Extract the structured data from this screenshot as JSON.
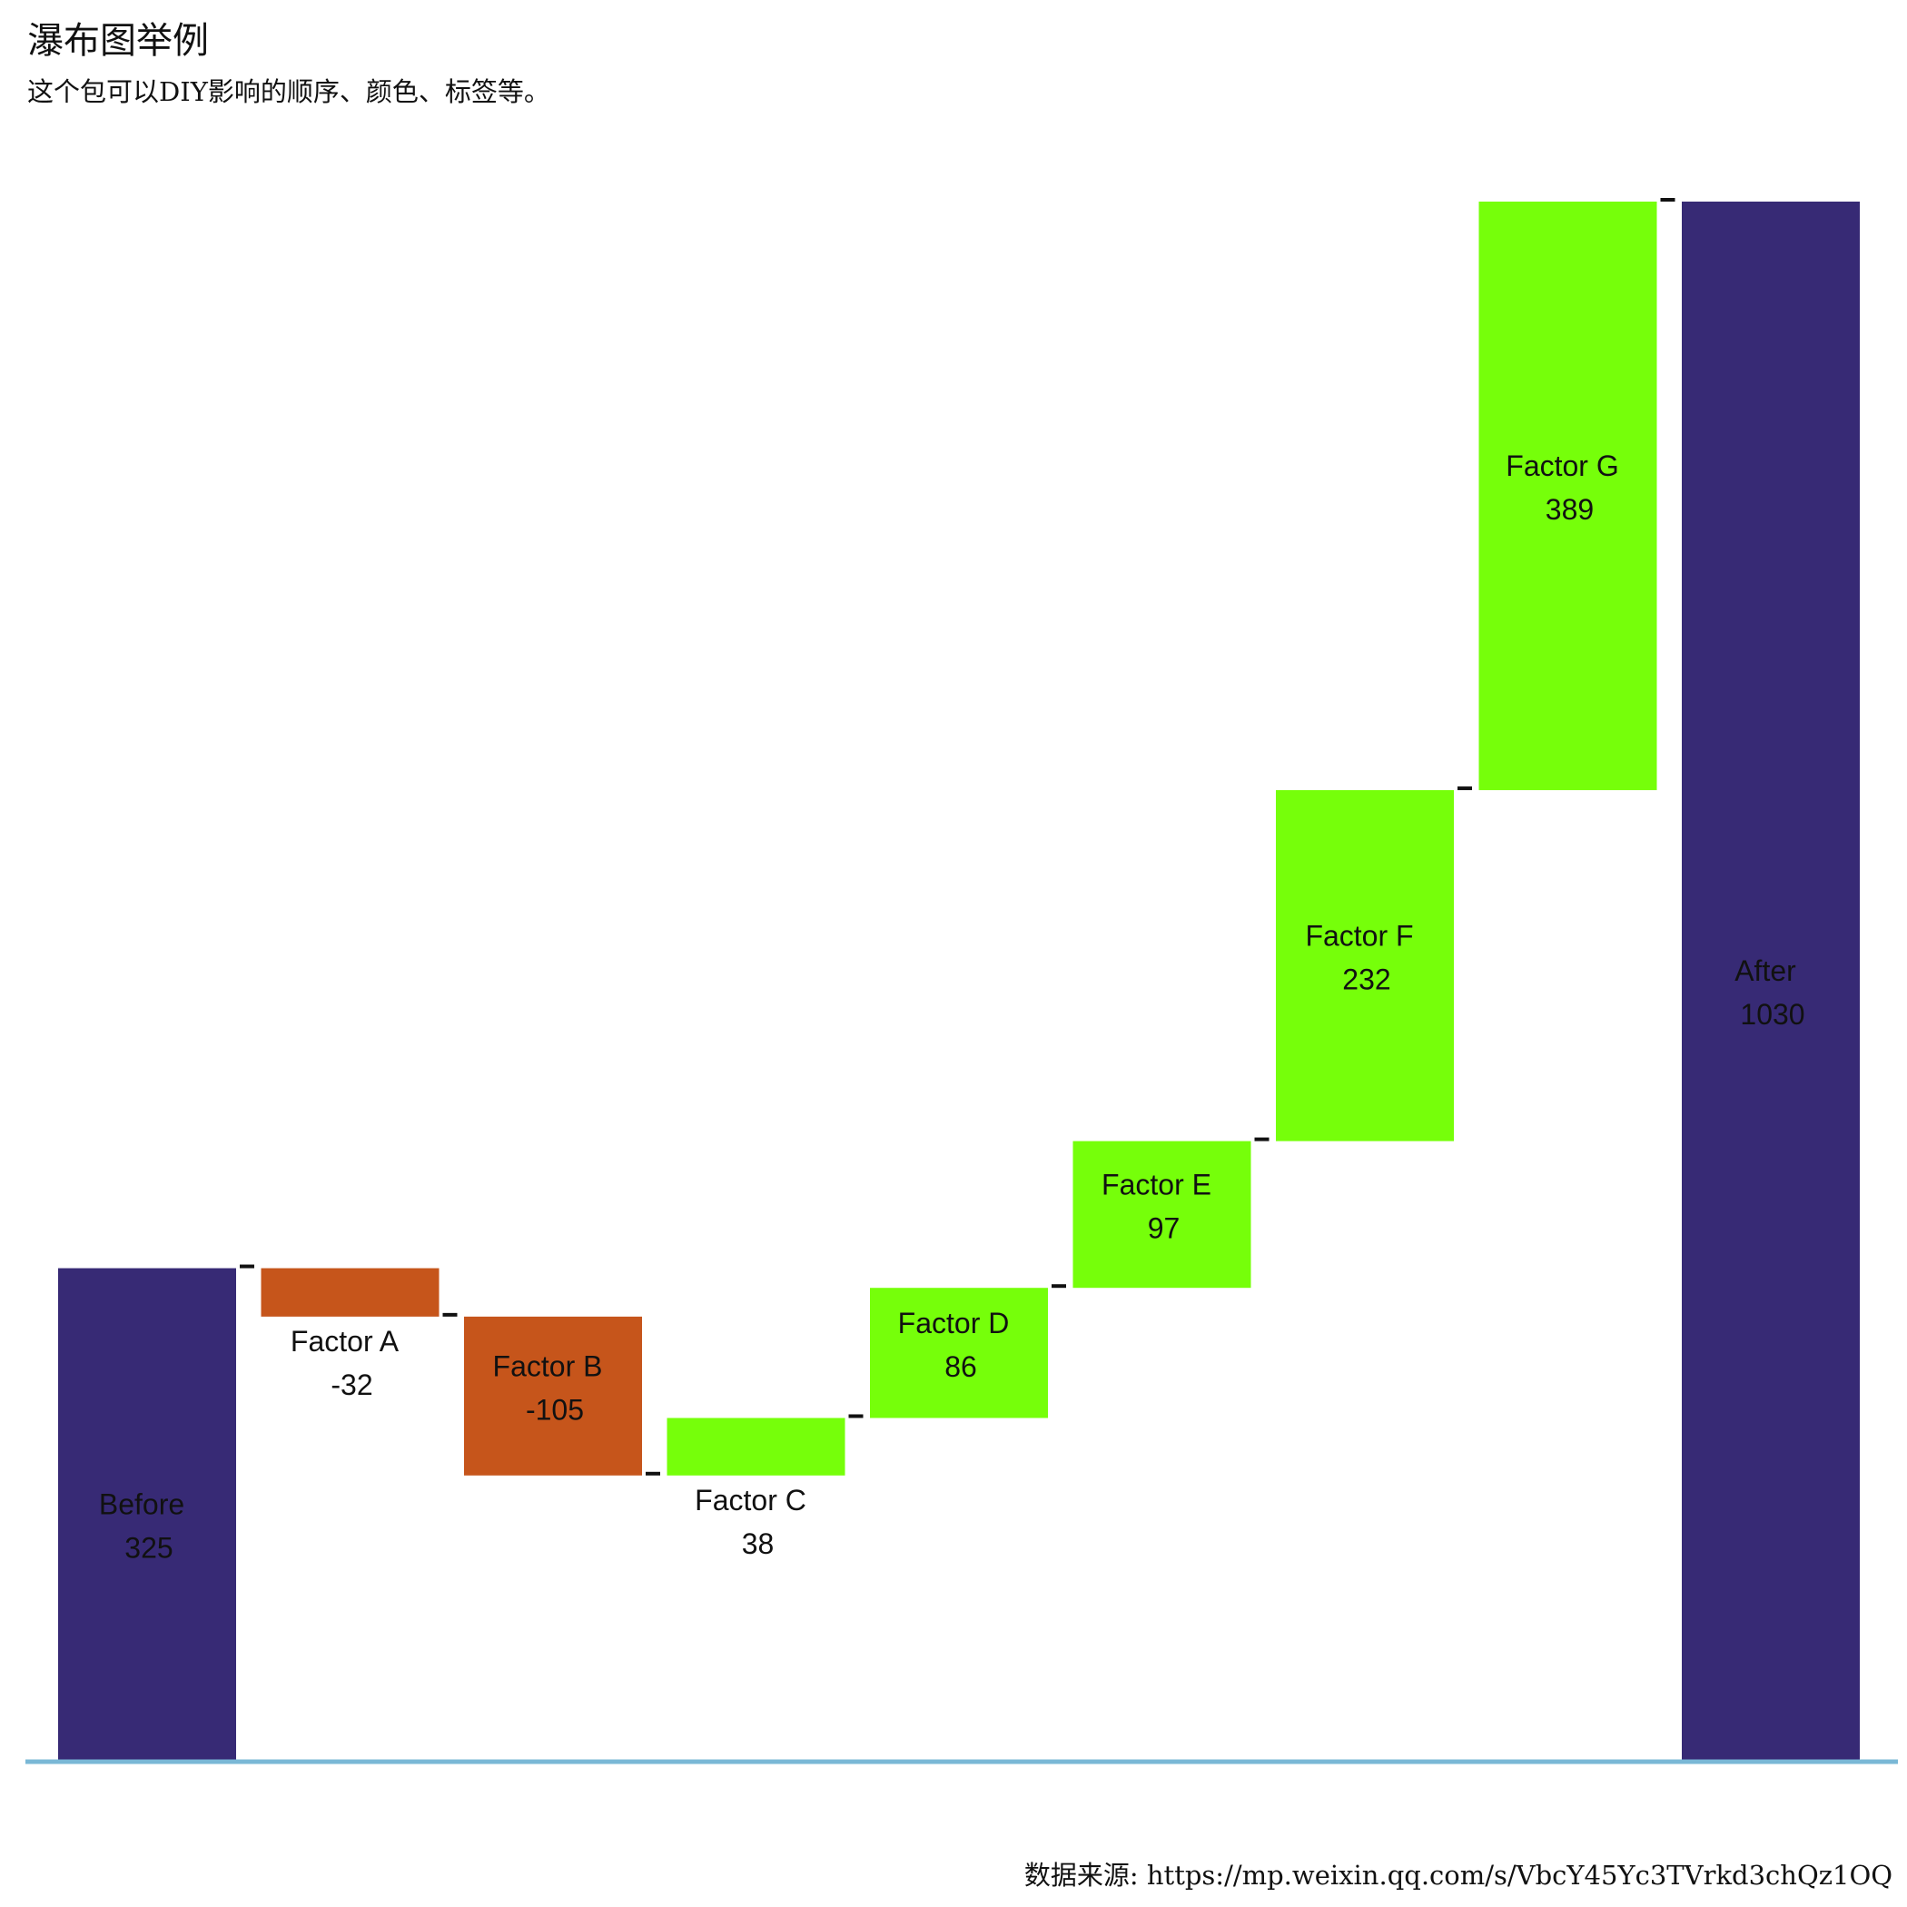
{
  "title": "瀑布图举例",
  "subtitle": "这个包可以DIY影响的顺序、颜色、标签等。",
  "caption": "数据来源: https://mp.weixin.qq.com/s/VbcY45Yc3TVrkd3chQz1OQ",
  "colors": {
    "total": "#372a75",
    "decrease": "#c6551b",
    "increase": "#76ff0a",
    "baseline": "#7ab8d6",
    "connector": "#111111",
    "label": "#111111"
  },
  "chart_data": {
    "type": "waterfall",
    "ylim": [
      0,
      1030
    ],
    "categories": [
      "Before",
      "Factor A",
      "Factor B",
      "Factor C",
      "Factor D",
      "Factor E",
      "Factor F",
      "Factor G",
      "After"
    ],
    "values": [
      325,
      -32,
      -105,
      38,
      86,
      97,
      232,
      389,
      1030
    ],
    "kinds": [
      "total",
      "decrease",
      "decrease",
      "increase",
      "increase",
      "increase",
      "increase",
      "increase",
      "total"
    ],
    "value_labels": [
      "325",
      "-32",
      "-105",
      "38",
      "86",
      "97",
      "232",
      "389",
      "1030"
    ],
    "grid": false,
    "legend": "none"
  }
}
